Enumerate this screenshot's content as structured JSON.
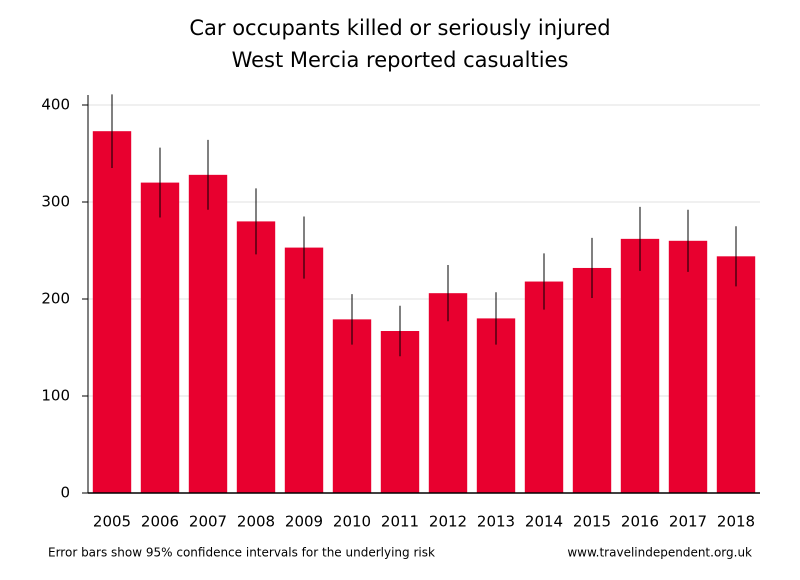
{
  "chart_data": {
    "type": "bar",
    "title": "Car occupants killed or seriously injured",
    "subtitle": "West Mercia reported casualties",
    "categories": [
      "2005",
      "2006",
      "2007",
      "2008",
      "2009",
      "2010",
      "2011",
      "2012",
      "2013",
      "2014",
      "2015",
      "2016",
      "2017",
      "2018"
    ],
    "values": [
      373,
      320,
      328,
      280,
      253,
      179,
      167,
      206,
      180,
      218,
      232,
      262,
      260,
      244
    ],
    "errors": [
      38,
      36,
      36,
      34,
      32,
      26,
      26,
      29,
      27,
      29,
      31,
      33,
      32,
      31
    ],
    "color": "#e8002f",
    "ylim": [
      0,
      400
    ],
    "yticks": [
      0,
      100,
      200,
      300,
      400
    ],
    "grid": true,
    "note": "Error bars show 95% confidence intervals for the underlying risk",
    "source": "www.travelindependent.org.uk"
  }
}
